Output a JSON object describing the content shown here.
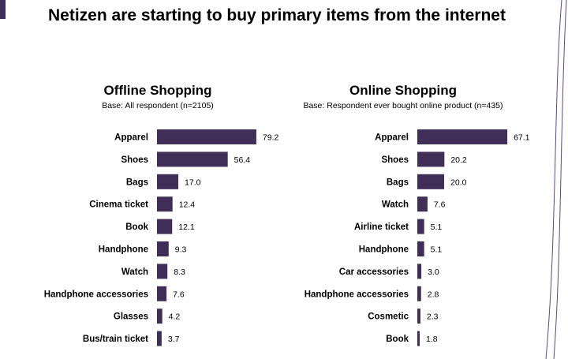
{
  "page": {
    "title": "Netizen are starting to buy primary items from the internet"
  },
  "colors": {
    "bar": "#3f2f56",
    "accent": "#3f2f56",
    "deco_stroke": "#5a4a7a"
  },
  "chart_data": [
    {
      "type": "bar",
      "orientation": "horizontal",
      "title": "Offline Shopping",
      "subtitle": "Base: All respondent (n=2105)",
      "categories": [
        "Apparel",
        "Shoes",
        "Bags",
        "Cinema ticket",
        "Book",
        "Handphone",
        "Watch",
        "Handphone accessories",
        "Glasses",
        "Bus/train ticket"
      ],
      "values": [
        79.2,
        56.4,
        17.0,
        12.4,
        12.1,
        9.3,
        8.3,
        7.6,
        4.2,
        3.7
      ],
      "labels": [
        "79.2",
        "56.4",
        "17.0",
        "12.4",
        "12.1",
        "9.3",
        "8.3",
        "7.6",
        "4.2",
        "3.7"
      ],
      "xlim": [
        0,
        100
      ],
      "grid": false,
      "legend": "none"
    },
    {
      "type": "bar",
      "orientation": "horizontal",
      "title": "Online Shopping",
      "subtitle": "Base: Respondent ever bought online product (n=435)",
      "categories": [
        "Apparel",
        "Shoes",
        "Bags",
        "Watch",
        "Airline ticket",
        "Handphone",
        "Car accessories",
        "Handphone accessories",
        "Cosmetic",
        "Book"
      ],
      "values": [
        67.1,
        20.2,
        20.0,
        7.6,
        5.1,
        5.1,
        3.0,
        2.8,
        2.3,
        1.8
      ],
      "labels": [
        "67.1",
        "20.2",
        "20.0",
        "7.6",
        "5.1",
        "5.1",
        "3.0",
        "2.8",
        "2.3",
        "1.8"
      ],
      "xlim": [
        0,
        100
      ],
      "grid": false,
      "legend": "none"
    }
  ]
}
